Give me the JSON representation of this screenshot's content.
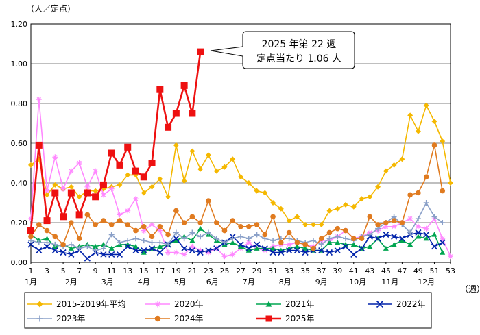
{
  "chart_data": {
    "type": "line",
    "y_unit_label": "（人／定点）",
    "x_unit_label": "（週）",
    "ylim": [
      0,
      1.2
    ],
    "yticks": [
      "0.00",
      "0.20",
      "0.40",
      "0.60",
      "0.80",
      "1.00",
      "1.20"
    ],
    "xlim": [
      1,
      53
    ],
    "xticks": [
      1,
      3,
      5,
      7,
      9,
      11,
      13,
      15,
      17,
      19,
      21,
      23,
      25,
      27,
      29,
      31,
      33,
      35,
      37,
      39,
      41,
      43,
      45,
      47,
      49,
      51,
      53
    ],
    "months": [
      {
        "label": "1月",
        "week": 1
      },
      {
        "label": "2月",
        "week": 6
      },
      {
        "label": "3月",
        "week": 10.5
      },
      {
        "label": "4月",
        "week": 15
      },
      {
        "label": "5月",
        "week": 19.5
      },
      {
        "label": "6月",
        "week": 23.5
      },
      {
        "label": "7月",
        "week": 28
      },
      {
        "label": "8月",
        "week": 32.5
      },
      {
        "label": "9月",
        "week": 37
      },
      {
        "label": "10月",
        "week": 41.5
      },
      {
        "label": "11月",
        "week": 45.5
      },
      {
        "label": "12月",
        "week": 50
      }
    ],
    "grid": true,
    "legend_position": "bottom",
    "annotation": {
      "lines": [
        "2025 年第 22 週",
        "定点当たり 1.06 人"
      ],
      "target_week": 22,
      "target_value": 1.06
    },
    "series": [
      {
        "name": "2015-2019年平均",
        "color": "#F5B800",
        "marker": "diamond",
        "values": [
          0.49,
          0.52,
          0.34,
          0.39,
          0.37,
          0.38,
          0.33,
          0.36,
          0.36,
          0.37,
          0.38,
          0.39,
          0.44,
          0.44,
          0.35,
          0.38,
          0.42,
          0.33,
          0.59,
          0.41,
          0.56,
          0.47,
          0.54,
          0.46,
          0.48,
          0.52,
          0.43,
          0.4,
          0.36,
          0.35,
          0.3,
          0.27,
          0.21,
          0.23,
          0.19,
          0.19,
          0.19,
          0.26,
          0.27,
          0.29,
          0.28,
          0.32,
          0.33,
          0.38,
          0.46,
          0.49,
          0.52,
          0.74,
          0.66,
          0.79,
          0.71,
          0.61,
          0.4
        ]
      },
      {
        "name": "2020年",
        "color": "#FF88FF",
        "marker": "star",
        "values": [
          0.22,
          0.82,
          0.36,
          0.53,
          0.37,
          0.46,
          0.5,
          0.38,
          0.46,
          0.34,
          0.37,
          0.24,
          0.26,
          0.32,
          0.16,
          0.19,
          0.16,
          0.05,
          0.05,
          0.04,
          0.08,
          0.06,
          0.05,
          0.07,
          0.03,
          0.04,
          0.07,
          0.1,
          0.07,
          0.06,
          0.08,
          0.09,
          0.09,
          0.1,
          0.09,
          0.08,
          0.11,
          0.11,
          0.13,
          0.16,
          0.12,
          0.13,
          0.15,
          0.16,
          0.18,
          0.18,
          0.2,
          0.22,
          0.18,
          0.17,
          0.22,
          0.12,
          0.03
        ]
      },
      {
        "name": "2021年",
        "color": "#00A550",
        "marker": "triangle",
        "values": [
          0.14,
          0.11,
          0.12,
          0.08,
          0.09,
          0.07,
          0.08,
          0.09,
          0.08,
          0.09,
          0.07,
          0.09,
          0.09,
          0.08,
          0.05,
          0.07,
          0.08,
          0.09,
          0.11,
          0.13,
          0.11,
          0.17,
          0.14,
          0.11,
          0.09,
          0.1,
          0.08,
          0.06,
          0.07,
          0.07,
          0.07,
          0.06,
          0.07,
          0.08,
          0.07,
          0.06,
          0.06,
          0.1,
          0.1,
          0.09,
          0.09,
          0.07,
          0.08,
          0.12,
          0.07,
          0.09,
          0.11,
          0.09,
          0.13,
          0.12,
          0.14,
          0.05,
          null
        ]
      },
      {
        "name": "2022年",
        "color": "#0022AA",
        "marker": "x",
        "values": [
          0.09,
          0.06,
          0.08,
          0.06,
          0.05,
          0.04,
          0.06,
          0.02,
          0.05,
          0.04,
          0.04,
          0.04,
          0.08,
          0.06,
          0.06,
          0.07,
          0.05,
          0.09,
          0.12,
          0.07,
          0.06,
          0.05,
          0.06,
          0.07,
          0.1,
          0.13,
          0.09,
          0.07,
          0.09,
          0.07,
          0.05,
          0.05,
          0.06,
          0.06,
          0.05,
          0.06,
          0.06,
          0.05,
          0.06,
          0.08,
          0.04,
          0.07,
          0.13,
          0.12,
          0.14,
          0.13,
          0.12,
          0.14,
          0.15,
          0.14,
          0.08,
          0.1,
          null
        ]
      },
      {
        "name": "2023年",
        "color": "#8AA0C8",
        "marker": "plus",
        "values": [
          0.11,
          0.1,
          0.1,
          0.09,
          0.08,
          0.09,
          0.07,
          0.08,
          0.06,
          0.07,
          0.14,
          0.1,
          0.11,
          0.12,
          0.11,
          0.1,
          0.1,
          0.09,
          0.15,
          0.12,
          0.15,
          0.13,
          0.15,
          0.12,
          0.1,
          0.12,
          0.13,
          0.12,
          0.14,
          0.12,
          0.11,
          0.12,
          0.12,
          0.11,
          0.1,
          0.11,
          0.09,
          0.12,
          0.13,
          0.12,
          0.11,
          0.13,
          0.14,
          0.17,
          0.2,
          0.23,
          0.19,
          0.15,
          0.22,
          0.3,
          0.23,
          0.2,
          null
        ]
      },
      {
        "name": "2024年",
        "color": "#E07B20",
        "marker": "circle",
        "values": [
          0.13,
          0.19,
          0.16,
          0.13,
          0.09,
          0.2,
          0.12,
          0.24,
          0.19,
          0.21,
          0.19,
          0.21,
          0.19,
          0.16,
          0.18,
          0.13,
          0.18,
          0.14,
          0.26,
          0.2,
          0.23,
          0.2,
          0.31,
          0.2,
          0.16,
          0.21,
          0.18,
          0.18,
          0.19,
          0.14,
          0.23,
          0.1,
          0.15,
          0.1,
          0.09,
          0.07,
          0.12,
          0.15,
          0.17,
          0.16,
          0.12,
          0.12,
          0.23,
          0.19,
          0.2,
          0.21,
          0.2,
          0.34,
          0.35,
          0.43,
          0.59,
          0.36,
          null
        ]
      },
      {
        "name": "2025年",
        "color": "#EE1111",
        "marker": "square",
        "values": [
          0.16,
          0.59,
          0.21,
          0.35,
          0.23,
          0.35,
          0.24,
          0.35,
          0.33,
          0.39,
          0.55,
          0.49,
          0.58,
          0.46,
          0.43,
          0.5,
          0.87,
          0.68,
          0.75,
          0.89,
          0.75,
          1.06,
          null,
          null,
          null,
          null,
          null,
          null,
          null,
          null,
          null,
          null,
          null,
          null,
          null,
          null,
          null,
          null,
          null,
          null,
          null,
          null,
          null,
          null,
          null,
          null,
          null,
          null,
          null,
          null,
          null,
          null,
          null
        ]
      }
    ]
  }
}
